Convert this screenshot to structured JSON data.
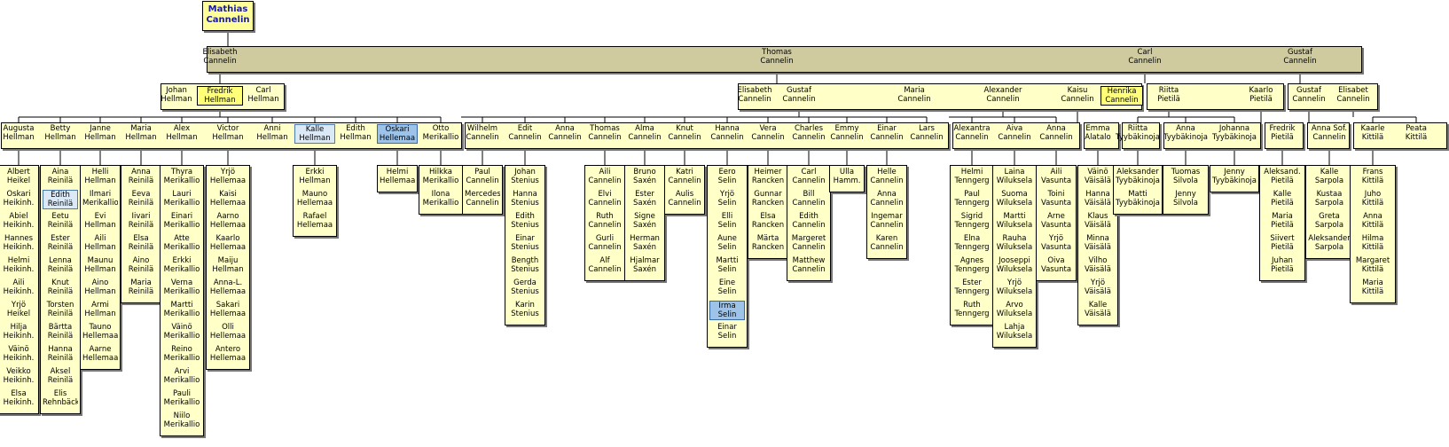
{
  "root": {
    "first": "Mathias",
    "last": "Cannelin"
  },
  "gen1": [
    {
      "first": "Elisabeth",
      "last": "Cannelin"
    },
    {
      "first": "Thomas",
      "last": "Cannelin"
    },
    {
      "first": "Carl",
      "last": "Cannelin"
    },
    {
      "first": "Gustaf",
      "last": "Cannelin"
    }
  ],
  "gen2": [
    {
      "first": "Johan",
      "last": "Hellman"
    },
    {
      "first": "Fredrik",
      "last": "Hellman"
    },
    {
      "first": "Carl",
      "last": "Hellman"
    },
    {
      "first": "Elisabeth",
      "last": "Cannelin"
    },
    {
      "first": "Gustaf",
      "last": "Cannelin"
    },
    {
      "first": "Maria",
      "last": "Cannelin"
    },
    {
      "first": "Alexander",
      "last": "Cannelin"
    },
    {
      "first": "Kaisu",
      "last": "Cannelin"
    },
    {
      "first": "Henrika",
      "last": "Cannelin"
    },
    {
      "first": "Riitta",
      "last": "Pietilä"
    },
    {
      "first": "Kaarlo",
      "last": "Pietilä"
    },
    {
      "first": "Gustaf",
      "last": "Cannelin"
    },
    {
      "first": "Elisabet",
      "last": "Cannelin"
    }
  ],
  "gen3": [
    {
      "first": "Augusta",
      "last": "Hellman"
    },
    {
      "first": "Betty",
      "last": "Hellman"
    },
    {
      "first": "Janne",
      "last": "Hellman"
    },
    {
      "first": "Maria",
      "last": "Hellman"
    },
    {
      "first": "Alex",
      "last": "Hellman"
    },
    {
      "first": "Victor",
      "last": "Hellman"
    },
    {
      "first": "Anni",
      "last": "Hellman"
    },
    {
      "first": "Kalle",
      "last": "Hellman"
    },
    {
      "first": "Edith",
      "last": "Hellman"
    },
    {
      "first": "Oskari",
      "last": "Hellemaa"
    },
    {
      "first": "Otto",
      "last": "Merikallio"
    },
    {
      "first": "Wilhelm",
      "last": "Cannelin"
    },
    {
      "first": "Edit",
      "last": "Cannelin"
    },
    {
      "first": "Anna",
      "last": "Cannelin"
    },
    {
      "first": "Thomas",
      "last": "Cannelin"
    },
    {
      "first": "Alma",
      "last": "Cannelin"
    },
    {
      "first": "Knut",
      "last": "Cannelin"
    },
    {
      "first": "Hanna",
      "last": "Cannelin"
    },
    {
      "first": "Vera",
      "last": "Cannelin"
    },
    {
      "first": "Charles",
      "last": "Cannelin"
    },
    {
      "first": "Emmy",
      "last": "Cannelin"
    },
    {
      "first": "Einar",
      "last": "Cannelin"
    },
    {
      "first": "Lars",
      "last": "Cannelin"
    },
    {
      "first": "Alexantra",
      "last": "Cannelin"
    },
    {
      "first": "Aiva",
      "last": "Cannelin"
    },
    {
      "first": "Anna",
      "last": "Cannelin"
    },
    {
      "first": "Emma",
      "last": "Alatalo"
    },
    {
      "first": "Riitta",
      "last": "Tyybäkinoja"
    },
    {
      "first": "Anna",
      "last": "Tyybäkinoja"
    },
    {
      "first": "Johanna",
      "last": "Tyybäkinoja"
    },
    {
      "first": "Fredrik",
      "last": "Pietilä"
    },
    {
      "first": "Anna Sof.",
      "last": "Cannelin"
    },
    {
      "first": "Kaarle",
      "last": "Kittilä"
    },
    {
      "first": "Peata",
      "last": "Kittilä"
    }
  ],
  "gen4": [
    [
      "Albert|Heikel",
      "Oskari|Heikinh.",
      "Abiel|Heikinh.",
      "Hannes|Heikinh.",
      "Helmi|Heikinh.",
      "Aili|Heikinh.",
      "Yrjö|Heikel",
      "Hilja|Heikinh.",
      "Väinö|Heikinh.",
      "Veikko|Heikinh.",
      "Elsa|Heikinh."
    ],
    [
      "Aina|Reinilä",
      "Edith|Reinilä",
      "Eetu|Reinilä",
      "Ester|Reinilä",
      "Lenna|Reinilä",
      "Knut|Reinilä",
      "Torsten|Reinilä",
      "Bärtta|Reinilä",
      "Hanna|Reinilä",
      "Aksel|Reinilä",
      "Elis|Rehnbäck"
    ],
    [
      "Helli|Hellman",
      "Ilmari|Merikallio",
      "Evi|Hellman",
      "Aili|Hellman",
      "Maunu|Hellman",
      "Aino|Hellman",
      "Armi|Hellman",
      "Tauno|Hellemaa",
      "Aarne|Hellemaa"
    ],
    [
      "Anna|Reinilä",
      "Eeva|Reinilä",
      "Iivari|Reinilä",
      "Elsa|Reinilä",
      "Aino|Reinilä",
      "Maria|Reinilä"
    ],
    [
      "Thyra|Merikallio",
      "Lauri|Merikallio",
      "Einari|Merikallio",
      "Atte|Merikallio",
      "Erkki|Merikallio",
      "Verna|Merikallio",
      "Martti|Merikallio",
      "Väinö|Merikallio",
      "Reino|Merikallio",
      "Arvi|Merikallio",
      "Pauli|Merikallio",
      "Niilo|Merikallio"
    ],
    [
      "Yrjö|Hellemaa",
      "Kaisi|Hellemaa",
      "Aarno|Hellemaa",
      "Kaarlo|Hellemaa",
      "Maiju|Hellman",
      "Anna-L.|Hellemaa",
      "Sakari|Hellemaa",
      "Olli|Hellemaa",
      "Antero|Hellemaa"
    ],
    [
      "Erkki|Hellman",
      "Mauno|Hellemaa",
      "Rafael|Hellemaa"
    ],
    [
      "Helmi|Hellemaa"
    ],
    [
      "Hilkka|Merikallio",
      "Ilona|Merikallio"
    ],
    [
      "Paul|Cannelin",
      "Mercedes|Cannelin"
    ],
    [
      "Johan|Stenius",
      "Hanna|Stenius",
      "Edith|Stenius",
      "Einar|Stenius",
      "Bength|Stenius",
      "Gerda|Stenius",
      "Karin|Stenius"
    ],
    [
      "Aili|Cannelin",
      "Elvi|Cannelin",
      "Ruth|Cannelin",
      "Gurli|Cannelin",
      "Alf|Cannelin"
    ],
    [
      "Bruno|Saxén",
      "Ester|Saxén",
      "Signe|Saxén",
      "Herman|Saxén",
      "Hjalmar|Saxén"
    ],
    [
      "Katri|Cannelin",
      "Aulis|Cannelin"
    ],
    [
      "Eero|Selin",
      "Yrjö|Selin",
      "Elli|Selin",
      "Aune|Selin",
      "Martti|Selin",
      "Eine|Selin",
      "Irma|Selin",
      "Einar|Selin"
    ],
    [
      "Heimer|Rancken",
      "Gunnar|Rancken",
      "Elsa|Rancken",
      "Märta|Rancken"
    ],
    [
      "Carl|Cannelin",
      "Bill|Cannelin",
      "Edith|Cannelin",
      "Margeret|Cannelin",
      "Matthew|Cannelin"
    ],
    [
      "Ulla|Hamm."
    ],
    [
      "Helle|Cannelin",
      "Anna|Cannelin",
      "Ingemar|Cannelin",
      "Karen|Cannelin"
    ],
    [
      "Helmi|Tenngerg",
      "Paul|Tenngerg",
      "Sigrid|Tenngerg",
      "Elna|Tenngerg",
      "Agnes|Tenngerg",
      "Ester|Tenngerg",
      "Ruth|Tenngerg"
    ],
    [
      "Laina|Wiluksela",
      "Suoma|Wiluksela",
      "Martti|Wiluksela",
      "Rauha|Wiluksela",
      "Jooseppi|Wiluksela",
      "Yrjö|Wiluksela",
      "Arvo|Wiluksela",
      "Lahja|Wiluksela"
    ],
    [
      "Aili|Vasunta",
      "Toini|Vasunta",
      "Arne|Vasunta",
      "Yrjö|Vasunta",
      "Oiva|Vasunta"
    ],
    [
      "Väinö|Väisälä",
      "Hanna|Väisälä",
      "Klaus|Väisälä",
      "Minna|Väisälä",
      "Vilho|Väisälä",
      "Yrjö|Väisälä",
      "Kalle|Väisälä"
    ],
    [
      "Aleksander|Tyybäkinoja",
      "Matti|Tyybäkinoja"
    ],
    [
      "Tuomas|Silvola",
      "Jenny|Silvola"
    ],
    [
      "Jenny|Tyybäkinoja"
    ],
    [
      "Aleksand.|Pietilä",
      "Kalle|Pietilä",
      "Maria|Pietilä",
      "Siivert|Pietilä",
      "Juhan|Pietilä"
    ],
    [
      "Kalle|Sarpola",
      "Kustaa|Sarpola",
      "Greta|Sarpola",
      "Aleksander|Sarpola"
    ],
    [
      "Frans|Kittilä",
      "Juho|Kittilä",
      "Anna|Kittilä",
      "Hilma|Kittilä",
      "Margaret|Kittilä",
      "Maria|Kittilä"
    ]
  ]
}
